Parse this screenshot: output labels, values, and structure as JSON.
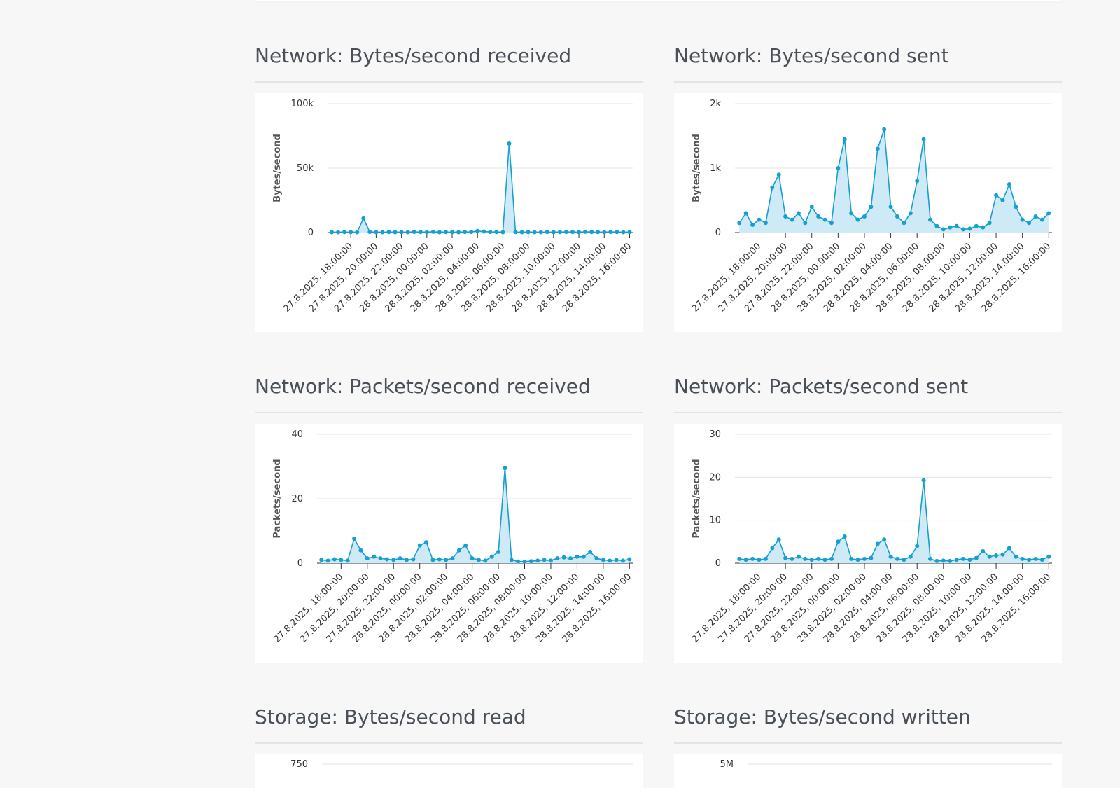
{
  "chart_data": [
    {
      "type": "line",
      "title": "Network: Bytes/second received",
      "ylabel": "Bytes/second",
      "color": "#169fd0",
      "area_color": "#cdeaf6",
      "grid": true,
      "x": [
        "27.8.2025, 16:30:00",
        "27.8.2025, 17:00:00",
        "27.8.2025, 17:30:00",
        "27.8.2025, 18:00:00",
        "27.8.2025, 18:30:00",
        "27.8.2025, 19:00:00",
        "27.8.2025, 19:30:00",
        "27.8.2025, 20:00:00",
        "27.8.2025, 20:30:00",
        "27.8.2025, 21:00:00",
        "27.8.2025, 21:30:00",
        "27.8.2025, 22:00:00",
        "27.8.2025, 22:30:00",
        "27.8.2025, 23:00:00",
        "27.8.2025, 23:30:00",
        "28.8.2025, 00:00:00",
        "28.8.2025, 00:30:00",
        "28.8.2025, 01:00:00",
        "28.8.2025, 01:30:00",
        "28.8.2025, 02:00:00",
        "28.8.2025, 02:30:00",
        "28.8.2025, 03:00:00",
        "28.8.2025, 03:30:00",
        "28.8.2025, 04:00:00",
        "28.8.2025, 04:30:00",
        "28.8.2025, 05:00:00",
        "28.8.2025, 05:30:00",
        "28.8.2025, 06:00:00",
        "28.8.2025, 06:30:00",
        "28.8.2025, 07:00:00",
        "28.8.2025, 07:30:00",
        "28.8.2025, 08:00:00",
        "28.8.2025, 08:30:00",
        "28.8.2025, 09:00:00",
        "28.8.2025, 09:30:00",
        "28.8.2025, 10:00:00",
        "28.8.2025, 10:30:00",
        "28.8.2025, 11:00:00",
        "28.8.2025, 11:30:00",
        "28.8.2025, 12:00:00",
        "28.8.2025, 12:30:00",
        "28.8.2025, 13:00:00",
        "28.8.2025, 13:30:00",
        "28.8.2025, 14:00:00",
        "28.8.2025, 14:30:00",
        "28.8.2025, 15:00:00",
        "28.8.2025, 15:30:00",
        "28.8.2025, 16:00:00"
      ],
      "values": [
        300,
        250,
        400,
        350,
        300,
        11000,
        500,
        300,
        250,
        400,
        300,
        350,
        300,
        500,
        400,
        300,
        600,
        300,
        400,
        350,
        300,
        450,
        500,
        1200,
        800,
        500,
        400,
        300,
        69000,
        400,
        300,
        350,
        300,
        250,
        400,
        300,
        350,
        500,
        400,
        300,
        600,
        400,
        350,
        300,
        500,
        400,
        300,
        350
      ],
      "xlim": [
        "27.8.2025, 16:10:00",
        "28.8.2025, 16:15:00"
      ],
      "xticks": [
        "27.8.2025, 18:00:00",
        "27.8.2025, 20:00:00",
        "27.8.2025, 22:00:00",
        "28.8.2025, 00:00:00",
        "28.8.2025, 02:00:00",
        "28.8.2025, 04:00:00",
        "28.8.2025, 06:00:00",
        "28.8.2025, 08:00:00",
        "28.8.2025, 10:00:00",
        "28.8.2025, 12:00:00",
        "28.8.2025, 14:00:00",
        "28.8.2025, 16:00:00"
      ],
      "ylim": [
        0,
        100000
      ],
      "yticks": [
        0,
        {
          "value": 50000,
          "label": "50k"
        },
        {
          "value": 100000,
          "label": "100k"
        }
      ]
    },
    {
      "type": "line",
      "title": "Network: Bytes/second sent",
      "ylabel": "Bytes/second",
      "color": "#169fd0",
      "area_color": "#cdeaf6",
      "grid": true,
      "x": [
        "27.8.2025, 16:30:00",
        "27.8.2025, 17:00:00",
        "27.8.2025, 17:30:00",
        "27.8.2025, 18:00:00",
        "27.8.2025, 18:30:00",
        "27.8.2025, 19:00:00",
        "27.8.2025, 19:30:00",
        "27.8.2025, 20:00:00",
        "27.8.2025, 20:30:00",
        "27.8.2025, 21:00:00",
        "27.8.2025, 21:30:00",
        "27.8.2025, 22:00:00",
        "27.8.2025, 22:30:00",
        "27.8.2025, 23:00:00",
        "27.8.2025, 23:30:00",
        "28.8.2025, 00:00:00",
        "28.8.2025, 00:30:00",
        "28.8.2025, 01:00:00",
        "28.8.2025, 01:30:00",
        "28.8.2025, 02:00:00",
        "28.8.2025, 02:30:00",
        "28.8.2025, 03:00:00",
        "28.8.2025, 03:30:00",
        "28.8.2025, 04:00:00",
        "28.8.2025, 04:30:00",
        "28.8.2025, 05:00:00",
        "28.8.2025, 05:30:00",
        "28.8.2025, 06:00:00",
        "28.8.2025, 06:30:00",
        "28.8.2025, 07:00:00",
        "28.8.2025, 07:30:00",
        "28.8.2025, 08:00:00",
        "28.8.2025, 08:30:00",
        "28.8.2025, 09:00:00",
        "28.8.2025, 09:30:00",
        "28.8.2025, 10:00:00",
        "28.8.2025, 10:30:00",
        "28.8.2025, 11:00:00",
        "28.8.2025, 11:30:00",
        "28.8.2025, 12:00:00",
        "28.8.2025, 12:30:00",
        "28.8.2025, 13:00:00",
        "28.8.2025, 13:30:00",
        "28.8.2025, 14:00:00",
        "28.8.2025, 14:30:00",
        "28.8.2025, 15:00:00",
        "28.8.2025, 15:30:00",
        "28.8.2025, 16:00:00"
      ],
      "values": [
        150,
        300,
        120,
        200,
        150,
        700,
        900,
        250,
        200,
        300,
        150,
        400,
        250,
        200,
        150,
        1000,
        1450,
        300,
        200,
        250,
        400,
        1300,
        1600,
        400,
        250,
        150,
        300,
        800,
        1450,
        200,
        100,
        50,
        80,
        100,
        50,
        60,
        100,
        80,
        150,
        580,
        500,
        750,
        400,
        200,
        150,
        250,
        200,
        300
      ],
      "xlim": [
        "27.8.2025, 16:10:00",
        "28.8.2025, 16:15:00"
      ],
      "xticks": [
        "27.8.2025, 18:00:00",
        "27.8.2025, 20:00:00",
        "27.8.2025, 22:00:00",
        "28.8.2025, 00:00:00",
        "28.8.2025, 02:00:00",
        "28.8.2025, 04:00:00",
        "28.8.2025, 06:00:00",
        "28.8.2025, 08:00:00",
        "28.8.2025, 10:00:00",
        "28.8.2025, 12:00:00",
        "28.8.2025, 14:00:00",
        "28.8.2025, 16:00:00"
      ],
      "ylim": [
        0,
        2000
      ],
      "yticks": [
        0,
        {
          "value": 1000,
          "label": "1k"
        },
        {
          "value": 2000,
          "label": "2k"
        }
      ]
    },
    {
      "type": "line",
      "title": "Network: Packets/second received",
      "ylabel": "Packets/second",
      "color": "#169fd0",
      "area_color": "#cdeaf6",
      "grid": true,
      "x": [
        "27.8.2025, 16:30:00",
        "27.8.2025, 17:00:00",
        "27.8.2025, 17:30:00",
        "27.8.2025, 18:00:00",
        "27.8.2025, 18:30:00",
        "27.8.2025, 19:00:00",
        "27.8.2025, 19:30:00",
        "27.8.2025, 20:00:00",
        "27.8.2025, 20:30:00",
        "27.8.2025, 21:00:00",
        "27.8.2025, 21:30:00",
        "27.8.2025, 22:00:00",
        "27.8.2025, 22:30:00",
        "27.8.2025, 23:00:00",
        "27.8.2025, 23:30:00",
        "28.8.2025, 00:00:00",
        "28.8.2025, 00:30:00",
        "28.8.2025, 01:00:00",
        "28.8.2025, 01:30:00",
        "28.8.2025, 02:00:00",
        "28.8.2025, 02:30:00",
        "28.8.2025, 03:00:00",
        "28.8.2025, 03:30:00",
        "28.8.2025, 04:00:00",
        "28.8.2025, 04:30:00",
        "28.8.2025, 05:00:00",
        "28.8.2025, 05:30:00",
        "28.8.2025, 06:00:00",
        "28.8.2025, 06:30:00",
        "28.8.2025, 07:00:00",
        "28.8.2025, 07:30:00",
        "28.8.2025, 08:00:00",
        "28.8.2025, 08:30:00",
        "28.8.2025, 09:00:00",
        "28.8.2025, 09:30:00",
        "28.8.2025, 10:00:00",
        "28.8.2025, 10:30:00",
        "28.8.2025, 11:00:00",
        "28.8.2025, 11:30:00",
        "28.8.2025, 12:00:00",
        "28.8.2025, 12:30:00",
        "28.8.2025, 13:00:00",
        "28.8.2025, 13:30:00",
        "28.8.2025, 14:00:00",
        "28.8.2025, 14:30:00",
        "28.8.2025, 15:00:00",
        "28.8.2025, 15:30:00",
        "28.8.2025, 16:00:00"
      ],
      "values": [
        1,
        0.8,
        1.2,
        1,
        0.8,
        7.6,
        4,
        1.5,
        2,
        1.5,
        1.2,
        1,
        1.5,
        1,
        1.2,
        5.5,
        6.5,
        1,
        1.2,
        1,
        1.5,
        4,
        5.5,
        1.5,
        1,
        0.8,
        2,
        3.5,
        29.5,
        1,
        0.5,
        0.5,
        0.6,
        0.8,
        1,
        0.8,
        1.5,
        1.8,
        1.5,
        2,
        2,
        3.5,
        1.5,
        1,
        0.8,
        1,
        0.8,
        1.2
      ],
      "xlim": [
        "27.8.2025, 16:10:00",
        "28.8.2025, 16:15:00"
      ],
      "xticks": [
        "27.8.2025, 18:00:00",
        "27.8.2025, 20:00:00",
        "27.8.2025, 22:00:00",
        "28.8.2025, 00:00:00",
        "28.8.2025, 02:00:00",
        "28.8.2025, 04:00:00",
        "28.8.2025, 06:00:00",
        "28.8.2025, 08:00:00",
        "28.8.2025, 10:00:00",
        "28.8.2025, 12:00:00",
        "28.8.2025, 14:00:00",
        "28.8.2025, 16:00:00"
      ],
      "ylim": [
        0,
        40
      ],
      "yticks": [
        0,
        20,
        40
      ]
    },
    {
      "type": "line",
      "title": "Network: Packets/second sent",
      "ylabel": "Packets/second",
      "color": "#169fd0",
      "area_color": "#cdeaf6",
      "grid": true,
      "x": [
        "27.8.2025, 16:30:00",
        "27.8.2025, 17:00:00",
        "27.8.2025, 17:30:00",
        "27.8.2025, 18:00:00",
        "27.8.2025, 18:30:00",
        "27.8.2025, 19:00:00",
        "27.8.2025, 19:30:00",
        "27.8.2025, 20:00:00",
        "27.8.2025, 20:30:00",
        "27.8.2025, 21:00:00",
        "27.8.2025, 21:30:00",
        "27.8.2025, 22:00:00",
        "27.8.2025, 22:30:00",
        "27.8.2025, 23:00:00",
        "27.8.2025, 23:30:00",
        "28.8.2025, 00:00:00",
        "28.8.2025, 00:30:00",
        "28.8.2025, 01:00:00",
        "28.8.2025, 01:30:00",
        "28.8.2025, 02:00:00",
        "28.8.2025, 02:30:00",
        "28.8.2025, 03:00:00",
        "28.8.2025, 03:30:00",
        "28.8.2025, 04:00:00",
        "28.8.2025, 04:30:00",
        "28.8.2025, 05:00:00",
        "28.8.2025, 05:30:00",
        "28.8.2025, 06:00:00",
        "28.8.2025, 06:30:00",
        "28.8.2025, 07:00:00",
        "28.8.2025, 07:30:00",
        "28.8.2025, 08:00:00",
        "28.8.2025, 08:30:00",
        "28.8.2025, 09:00:00",
        "28.8.2025, 09:30:00",
        "28.8.2025, 10:00:00",
        "28.8.2025, 10:30:00",
        "28.8.2025, 11:00:00",
        "28.8.2025, 11:30:00",
        "28.8.2025, 12:00:00",
        "28.8.2025, 12:30:00",
        "28.8.2025, 13:00:00",
        "28.8.2025, 13:30:00",
        "28.8.2025, 14:00:00",
        "28.8.2025, 14:30:00",
        "28.8.2025, 15:00:00",
        "28.8.2025, 15:30:00",
        "28.8.2025, 16:00:00"
      ],
      "values": [
        1,
        0.8,
        1,
        0.8,
        1,
        3.5,
        5.5,
        1.2,
        1,
        1.5,
        1,
        0.8,
        1,
        0.8,
        1,
        5,
        6.2,
        1,
        0.8,
        1,
        1.2,
        4.5,
        5.5,
        1.5,
        1,
        0.8,
        1.5,
        4,
        19.3,
        1,
        0.5,
        0.6,
        0.5,
        0.8,
        1,
        0.8,
        1.2,
        2.8,
        1.5,
        1.8,
        2,
        3.5,
        1.5,
        1,
        0.8,
        1,
        0.8,
        1.5
      ],
      "xlim": [
        "27.8.2025, 16:10:00",
        "28.8.2025, 16:15:00"
      ],
      "xticks": [
        "27.8.2025, 18:00:00",
        "27.8.2025, 20:00:00",
        "27.8.2025, 22:00:00",
        "28.8.2025, 00:00:00",
        "28.8.2025, 02:00:00",
        "28.8.2025, 04:00:00",
        "28.8.2025, 06:00:00",
        "28.8.2025, 08:00:00",
        "28.8.2025, 10:00:00",
        "28.8.2025, 12:00:00",
        "28.8.2025, 14:00:00",
        "28.8.2025, 16:00:00"
      ],
      "ylim": [
        0,
        30
      ],
      "yticks": [
        0,
        10,
        20,
        30
      ]
    }
  ],
  "partial_charts": [
    {
      "title": "Storage: Bytes/second read",
      "yticks": [
        750
      ]
    },
    {
      "title": "Storage: Bytes/second written",
      "yticks": [
        {
          "value": 5000000,
          "label": "5M"
        }
      ]
    }
  ]
}
